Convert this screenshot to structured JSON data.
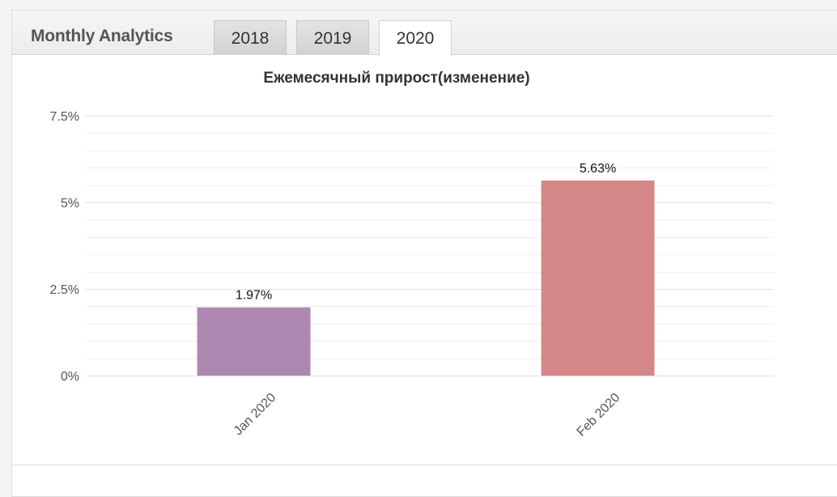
{
  "header": {
    "title": "Monthly Analytics",
    "tabs": [
      {
        "label": "2018",
        "active": false
      },
      {
        "label": "2019",
        "active": false
      },
      {
        "label": "2020",
        "active": true
      }
    ]
  },
  "chart_data": {
    "type": "bar",
    "title": "Ежемесячный прирост(изменение)",
    "categories": [
      "Jan 2020",
      "Feb 2020"
    ],
    "values": [
      1.97,
      5.63
    ],
    "data_labels": [
      "1.97%",
      "5.63%"
    ],
    "colors": [
      "#ad89b2",
      "#d48887"
    ],
    "ylim": [
      0,
      7.5
    ],
    "yticks": [
      0,
      2.5,
      5,
      7.5
    ],
    "ytick_labels": [
      "0%",
      "2.5%",
      "5%",
      "7.5%"
    ],
    "grid": true,
    "legend": "none"
  }
}
